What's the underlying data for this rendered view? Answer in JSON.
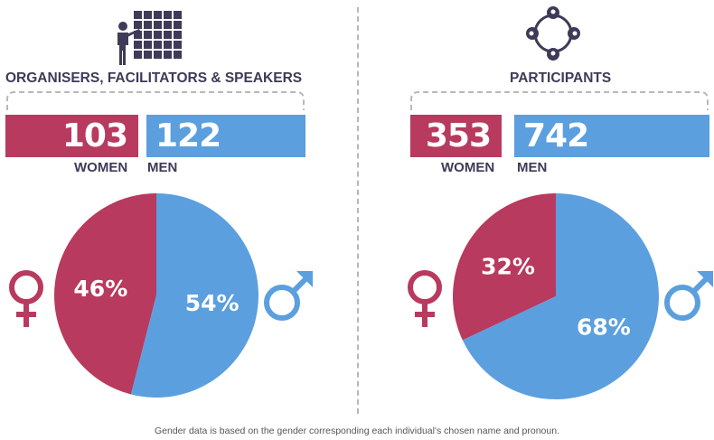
{
  "colors": {
    "women": "#b83a5e",
    "men": "#5b9fdf",
    "text": "#3f3a58",
    "icon": "#3f3a58"
  },
  "chart_data": [
    {
      "type": "pie",
      "title": "ORGANISERS, FACILITATORS & SPEAKERS",
      "categories": [
        "WOMEN",
        "MEN"
      ],
      "counts": [
        103,
        122
      ],
      "values": [
        46,
        54
      ],
      "value_labels": [
        "46%",
        "54%"
      ],
      "icon": "presenter-grid-icon"
    },
    {
      "type": "pie",
      "title": "PARTICIPANTS",
      "categories": [
        "WOMEN",
        "MEN"
      ],
      "counts": [
        353,
        742
      ],
      "values": [
        32,
        68
      ],
      "value_labels": [
        "32%",
        "68%"
      ],
      "icon": "people-network-icon"
    }
  ],
  "footnote": "Gender data is based on the gender corresponding each individual's chosen name and pronoun.",
  "symbols": {
    "female": "female-symbol-icon",
    "male": "male-symbol-icon"
  }
}
